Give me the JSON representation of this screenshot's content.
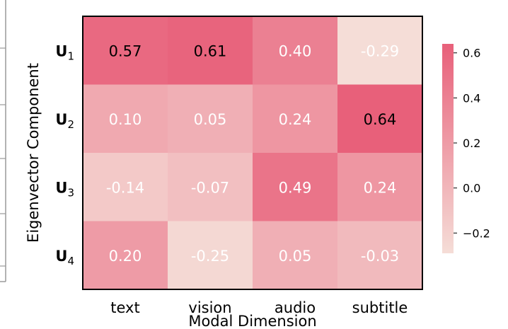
{
  "chart_data": {
    "type": "heatmap",
    "xlabel": "Modal Dimension",
    "ylabel": "Eigenvector Component",
    "x_categories": [
      "text",
      "vision",
      "audio",
      "subtitle"
    ],
    "y_categories": [
      {
        "base": "U",
        "sub": "1"
      },
      {
        "base": "U",
        "sub": "2"
      },
      {
        "base": "U",
        "sub": "3"
      },
      {
        "base": "U",
        "sub": "4"
      }
    ],
    "values": [
      [
        0.57,
        0.61,
        0.4,
        -0.29
      ],
      [
        0.1,
        0.05,
        0.24,
        0.64
      ],
      [
        -0.14,
        -0.07,
        0.49,
        0.24
      ],
      [
        0.2,
        -0.25,
        0.05,
        -0.03
      ]
    ],
    "value_labels": [
      [
        "0.57",
        "0.61",
        "0.40",
        "-0.29"
      ],
      [
        "0.10",
        "0.05",
        "0.24",
        "0.64"
      ],
      [
        "-0.14",
        "-0.07",
        "0.49",
        "0.24"
      ],
      [
        "0.20",
        "-0.25",
        "0.05",
        "-0.03"
      ]
    ],
    "colorbar": {
      "min": -0.29,
      "max": 0.64,
      "ticks": [
        {
          "value": 0.6,
          "label": "0.6"
        },
        {
          "value": 0.4,
          "label": "0.4"
        },
        {
          "value": 0.2,
          "label": "0.2"
        },
        {
          "value": 0.0,
          "label": "0.0"
        },
        {
          "value": -0.2,
          "label": "−0.2"
        }
      ]
    },
    "colors": {
      "low": "#f5ddd7",
      "high": "#e8607a",
      "dark_text": "#000000",
      "light_text": "#ffffff",
      "frame": "#000000"
    }
  }
}
